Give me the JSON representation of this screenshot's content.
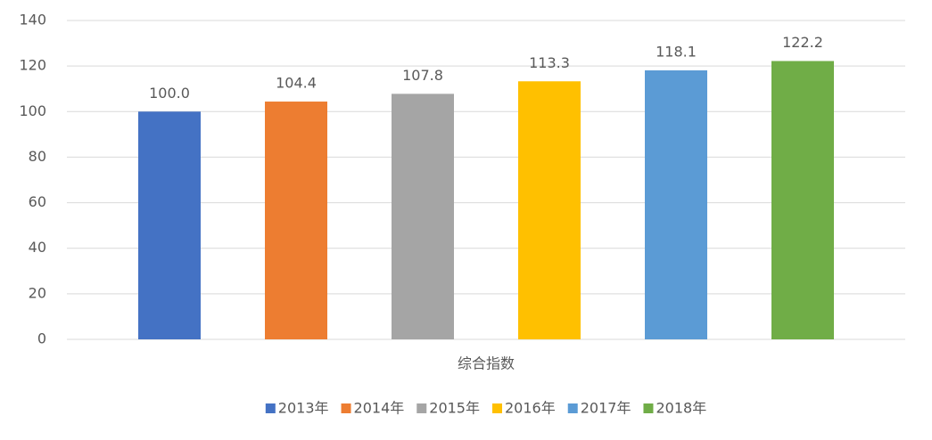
{
  "chart_data": {
    "type": "bar",
    "categories": [
      "综合指数"
    ],
    "series": [
      {
        "name": "2013年",
        "color": "#4472c4",
        "values": [
          100
        ],
        "value_labels": [
          "100.0"
        ]
      },
      {
        "name": "2014年",
        "color": "#ed7d31",
        "values": [
          104.4
        ],
        "value_labels": [
          "104.4"
        ]
      },
      {
        "name": "2015年",
        "color": "#a5a5a5",
        "values": [
          107.8
        ],
        "value_labels": [
          "107.8"
        ]
      },
      {
        "name": "2016年",
        "color": "#ffc000",
        "values": [
          113.3
        ],
        "value_labels": [
          "113.3"
        ]
      },
      {
        "name": "2017年",
        "color": "#5b9bd5",
        "values": [
          118.1
        ],
        "value_labels": [
          "118.1"
        ]
      },
      {
        "name": "2018年",
        "color": "#70ad47",
        "values": [
          122.2
        ],
        "value_labels": [
          "122.2"
        ]
      }
    ],
    "ylim": [
      0,
      140
    ],
    "yticks": [
      0,
      20,
      40,
      60,
      80,
      100,
      120,
      140
    ],
    "grid": true,
    "legend": "bottom"
  }
}
